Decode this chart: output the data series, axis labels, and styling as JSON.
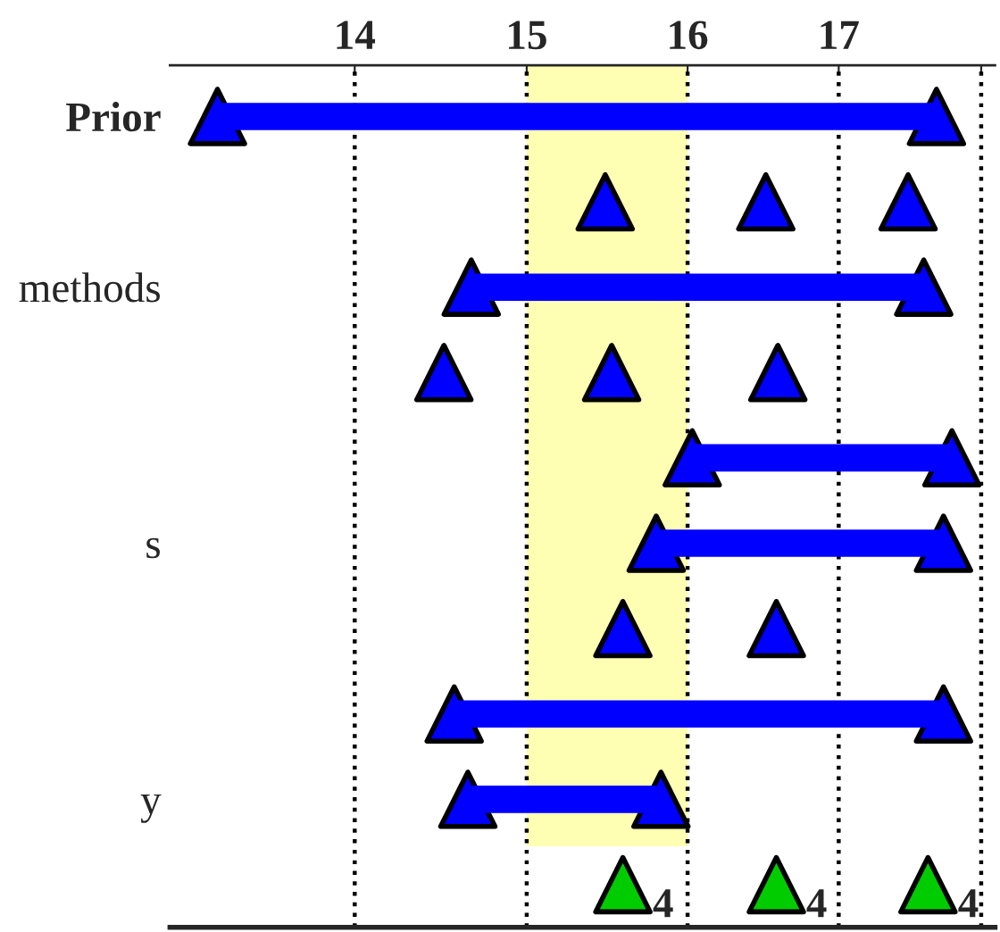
{
  "chart_data": {
    "type": "scatter",
    "orientation": "horizontal",
    "log": "x",
    "grid": "x",
    "line_style": "dotted",
    "marker": "triangle",
    "legend": false,
    "categories": [
      "Prior",
      null,
      "methods",
      null,
      null,
      "s",
      null,
      null,
      "y",
      null
    ],
    "xlim": [
      13.0,
      18.1
    ],
    "xticks": [
      14,
      15,
      16,
      17,
      {
        "value": 18,
        "label": null
      }
    ],
    "bands": [
      {
        "axis": "x",
        "from": 15,
        "to": 16,
        "color": "#ffffb3"
      }
    ],
    "annotations": [
      {
        "text": "4",
        "x": 15.59
      },
      {
        "text": "4",
        "x": 16.58
      },
      {
        "text": "4",
        "x": 17.62
      }
    ],
    "series": [
      {
        "type": "bar",
        "color": "#0000ff",
        "base": [
          13.25,
          null,
          14.67,
          null,
          16.03,
          15.8,
          null,
          14.57,
          14.65,
          null
        ],
        "values": [
          4.43,
          null,
          2.92,
          null,
          1.76,
          1.93,
          null,
          3.16,
          1.18,
          null
        ]
      },
      {
        "type": "scatter",
        "color": "#0000ff",
        "values": [
          13.25,
          15.48,
          14.67,
          14.51,
          16.03,
          15.8,
          15.59,
          14.57,
          14.65,
          null
        ]
      },
      {
        "type": "scatter",
        "color": "#0000ff",
        "values": [
          17.68,
          16.51,
          17.59,
          15.52,
          17.79,
          17.73,
          16.58,
          17.73,
          15.83,
          null
        ]
      },
      {
        "type": "scatter",
        "color": "#0000ff",
        "values": [
          null,
          17.48,
          null,
          16.59,
          null,
          null,
          null,
          null,
          null,
          null
        ]
      },
      {
        "type": "scatter",
        "color": "#00cc00",
        "values": [
          null,
          null,
          null,
          null,
          null,
          null,
          null,
          null,
          null,
          15.59
        ]
      },
      {
        "type": "scatter",
        "color": "#00cc00",
        "values": [
          null,
          null,
          null,
          null,
          null,
          null,
          null,
          null,
          null,
          16.58
        ]
      },
      {
        "type": "scatter",
        "color": "#00cc00",
        "values": [
          null,
          null,
          null,
          null,
          null,
          null,
          null,
          null,
          null,
          17.62
        ]
      }
    ]
  }
}
